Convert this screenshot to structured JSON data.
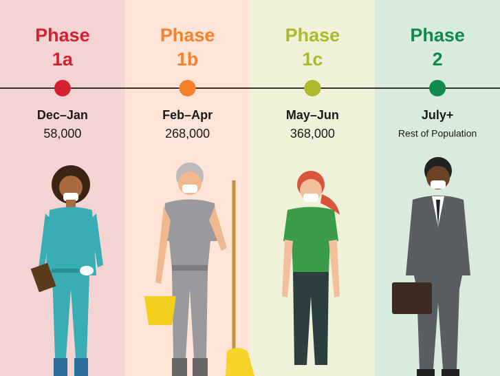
{
  "phases": [
    {
      "label": "Phase",
      "number": "1a",
      "period": "Dec–Jan",
      "count": "58,000",
      "color": "#d42030",
      "background": "#f4d3d3"
    },
    {
      "label": "Phase",
      "number": "1b",
      "period": "Feb–Apr",
      "count": "268,000",
      "color": "#f5822a",
      "background": "#fde4d6"
    },
    {
      "label": "Phase",
      "number": "1c",
      "period": "May–Jun",
      "count": "368,000",
      "color": "#aeb82b",
      "background": "#eff1d9"
    },
    {
      "label": "Phase",
      "number": "2",
      "period": "July+",
      "count": "Rest of Population",
      "color": "#108a4a",
      "background": "#d8ebdd"
    }
  ]
}
